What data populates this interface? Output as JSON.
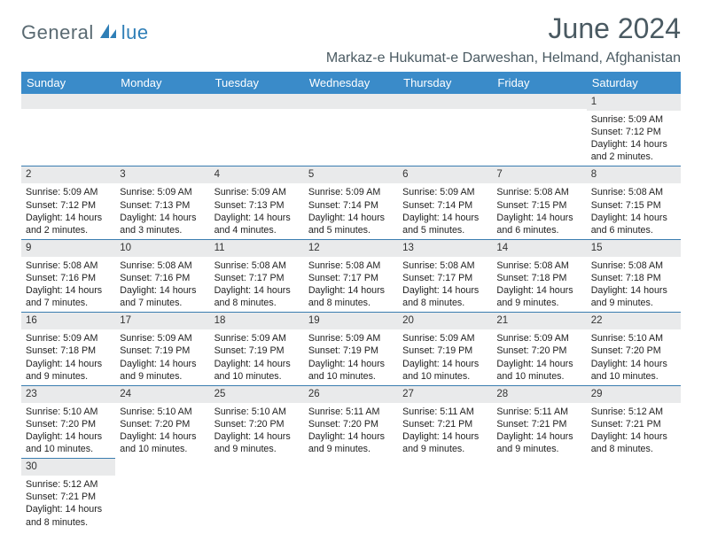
{
  "logo": {
    "text1": "General",
    "text2": "lue"
  },
  "title": "June 2024",
  "location": "Markaz-e Hukumat-e Darweshan, Helmand, Afghanistan",
  "colors": {
    "header_bg": "#3a8bc9",
    "header_fg": "#ffffff",
    "rule": "#3a7db0",
    "daynum_bg": "#e9eaeb",
    "logo_gray": "#5a6a72",
    "logo_blue": "#2f7fb7",
    "title_color": "#4a5a62"
  },
  "weekdays": [
    "Sunday",
    "Monday",
    "Tuesday",
    "Wednesday",
    "Thursday",
    "Friday",
    "Saturday"
  ],
  "weeks": [
    [
      null,
      null,
      null,
      null,
      null,
      null,
      {
        "n": "1",
        "sr": "Sunrise: 5:09 AM",
        "ss": "Sunset: 7:12 PM",
        "dl1": "Daylight: 14 hours",
        "dl2": "and 2 minutes."
      }
    ],
    [
      {
        "n": "2",
        "sr": "Sunrise: 5:09 AM",
        "ss": "Sunset: 7:12 PM",
        "dl1": "Daylight: 14 hours",
        "dl2": "and 2 minutes."
      },
      {
        "n": "3",
        "sr": "Sunrise: 5:09 AM",
        "ss": "Sunset: 7:13 PM",
        "dl1": "Daylight: 14 hours",
        "dl2": "and 3 minutes."
      },
      {
        "n": "4",
        "sr": "Sunrise: 5:09 AM",
        "ss": "Sunset: 7:13 PM",
        "dl1": "Daylight: 14 hours",
        "dl2": "and 4 minutes."
      },
      {
        "n": "5",
        "sr": "Sunrise: 5:09 AM",
        "ss": "Sunset: 7:14 PM",
        "dl1": "Daylight: 14 hours",
        "dl2": "and 5 minutes."
      },
      {
        "n": "6",
        "sr": "Sunrise: 5:09 AM",
        "ss": "Sunset: 7:14 PM",
        "dl1": "Daylight: 14 hours",
        "dl2": "and 5 minutes."
      },
      {
        "n": "7",
        "sr": "Sunrise: 5:08 AM",
        "ss": "Sunset: 7:15 PM",
        "dl1": "Daylight: 14 hours",
        "dl2": "and 6 minutes."
      },
      {
        "n": "8",
        "sr": "Sunrise: 5:08 AM",
        "ss": "Sunset: 7:15 PM",
        "dl1": "Daylight: 14 hours",
        "dl2": "and 6 minutes."
      }
    ],
    [
      {
        "n": "9",
        "sr": "Sunrise: 5:08 AM",
        "ss": "Sunset: 7:16 PM",
        "dl1": "Daylight: 14 hours",
        "dl2": "and 7 minutes."
      },
      {
        "n": "10",
        "sr": "Sunrise: 5:08 AM",
        "ss": "Sunset: 7:16 PM",
        "dl1": "Daylight: 14 hours",
        "dl2": "and 7 minutes."
      },
      {
        "n": "11",
        "sr": "Sunrise: 5:08 AM",
        "ss": "Sunset: 7:17 PM",
        "dl1": "Daylight: 14 hours",
        "dl2": "and 8 minutes."
      },
      {
        "n": "12",
        "sr": "Sunrise: 5:08 AM",
        "ss": "Sunset: 7:17 PM",
        "dl1": "Daylight: 14 hours",
        "dl2": "and 8 minutes."
      },
      {
        "n": "13",
        "sr": "Sunrise: 5:08 AM",
        "ss": "Sunset: 7:17 PM",
        "dl1": "Daylight: 14 hours",
        "dl2": "and 8 minutes."
      },
      {
        "n": "14",
        "sr": "Sunrise: 5:08 AM",
        "ss": "Sunset: 7:18 PM",
        "dl1": "Daylight: 14 hours",
        "dl2": "and 9 minutes."
      },
      {
        "n": "15",
        "sr": "Sunrise: 5:08 AM",
        "ss": "Sunset: 7:18 PM",
        "dl1": "Daylight: 14 hours",
        "dl2": "and 9 minutes."
      }
    ],
    [
      {
        "n": "16",
        "sr": "Sunrise: 5:09 AM",
        "ss": "Sunset: 7:18 PM",
        "dl1": "Daylight: 14 hours",
        "dl2": "and 9 minutes."
      },
      {
        "n": "17",
        "sr": "Sunrise: 5:09 AM",
        "ss": "Sunset: 7:19 PM",
        "dl1": "Daylight: 14 hours",
        "dl2": "and 9 minutes."
      },
      {
        "n": "18",
        "sr": "Sunrise: 5:09 AM",
        "ss": "Sunset: 7:19 PM",
        "dl1": "Daylight: 14 hours",
        "dl2": "and 10 minutes."
      },
      {
        "n": "19",
        "sr": "Sunrise: 5:09 AM",
        "ss": "Sunset: 7:19 PM",
        "dl1": "Daylight: 14 hours",
        "dl2": "and 10 minutes."
      },
      {
        "n": "20",
        "sr": "Sunrise: 5:09 AM",
        "ss": "Sunset: 7:19 PM",
        "dl1": "Daylight: 14 hours",
        "dl2": "and 10 minutes."
      },
      {
        "n": "21",
        "sr": "Sunrise: 5:09 AM",
        "ss": "Sunset: 7:20 PM",
        "dl1": "Daylight: 14 hours",
        "dl2": "and 10 minutes."
      },
      {
        "n": "22",
        "sr": "Sunrise: 5:10 AM",
        "ss": "Sunset: 7:20 PM",
        "dl1": "Daylight: 14 hours",
        "dl2": "and 10 minutes."
      }
    ],
    [
      {
        "n": "23",
        "sr": "Sunrise: 5:10 AM",
        "ss": "Sunset: 7:20 PM",
        "dl1": "Daylight: 14 hours",
        "dl2": "and 10 minutes."
      },
      {
        "n": "24",
        "sr": "Sunrise: 5:10 AM",
        "ss": "Sunset: 7:20 PM",
        "dl1": "Daylight: 14 hours",
        "dl2": "and 10 minutes."
      },
      {
        "n": "25",
        "sr": "Sunrise: 5:10 AM",
        "ss": "Sunset: 7:20 PM",
        "dl1": "Daylight: 14 hours",
        "dl2": "and 9 minutes."
      },
      {
        "n": "26",
        "sr": "Sunrise: 5:11 AM",
        "ss": "Sunset: 7:20 PM",
        "dl1": "Daylight: 14 hours",
        "dl2": "and 9 minutes."
      },
      {
        "n": "27",
        "sr": "Sunrise: 5:11 AM",
        "ss": "Sunset: 7:21 PM",
        "dl1": "Daylight: 14 hours",
        "dl2": "and 9 minutes."
      },
      {
        "n": "28",
        "sr": "Sunrise: 5:11 AM",
        "ss": "Sunset: 7:21 PM",
        "dl1": "Daylight: 14 hours",
        "dl2": "and 9 minutes."
      },
      {
        "n": "29",
        "sr": "Sunrise: 5:12 AM",
        "ss": "Sunset: 7:21 PM",
        "dl1": "Daylight: 14 hours",
        "dl2": "and 8 minutes."
      }
    ],
    [
      {
        "n": "30",
        "sr": "Sunrise: 5:12 AM",
        "ss": "Sunset: 7:21 PM",
        "dl1": "Daylight: 14 hours",
        "dl2": "and 8 minutes."
      },
      null,
      null,
      null,
      null,
      null,
      null
    ]
  ]
}
